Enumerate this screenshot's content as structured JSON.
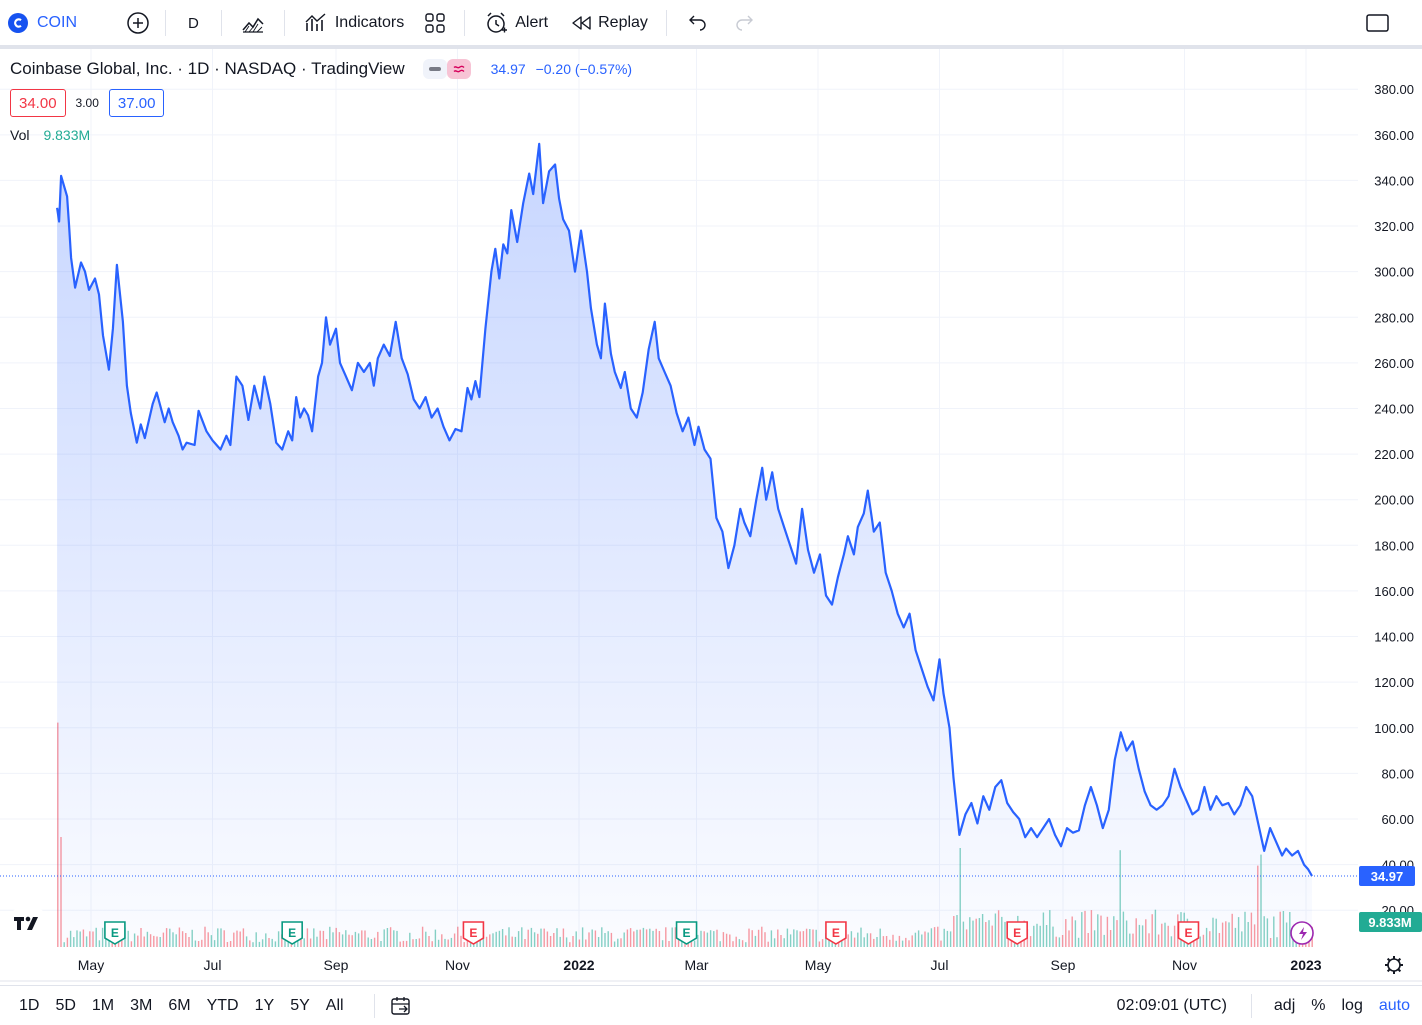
{
  "toolbar": {
    "symbol": "COIN",
    "interval": "D",
    "indicators_label": "Indicators",
    "alert_label": "Alert",
    "replay_label": "Replay"
  },
  "legend": {
    "title": "Coinbase Global, Inc. · 1D · NASDAQ · TradingView",
    "last": "34.97",
    "change": "−0.20 (−0.57%)"
  },
  "trade": {
    "sell": "34.00",
    "spread": "3.00",
    "buy": "37.00"
  },
  "volume": {
    "label": "Vol",
    "value": "9.833M"
  },
  "price_tag": "34.97",
  "volume_tag": "9.833M",
  "bottom": {
    "ranges": [
      "1D",
      "5D",
      "1M",
      "3M",
      "6M",
      "YTD",
      "1Y",
      "5Y",
      "All"
    ],
    "time": "02:09:01 (UTC)",
    "options": [
      "adj",
      "%",
      "log",
      "auto"
    ]
  },
  "colors": {
    "line": "#2962ff",
    "up": "#22ab94",
    "down": "#f23645",
    "earnings_past_up": "#089981",
    "earnings_down": "#f23645",
    "dividend": "#9c27b0"
  },
  "chart_data": {
    "type": "area",
    "series_name": "",
    "ylim": [
      0,
      390
    ],
    "yticks": [
      20,
      40,
      60,
      80,
      100,
      120,
      140,
      160,
      180,
      200,
      220,
      240,
      260,
      280,
      300,
      320,
      340,
      360,
      380
    ],
    "ytick_labels": [
      "20.00",
      "40.00",
      "60.00",
      "80.00",
      "100.00",
      "120.00",
      "140.00",
      "160.00",
      "180.00",
      "200.00",
      "220.00",
      "240.00",
      "260.00",
      "280.00",
      "300.00",
      "320.00",
      "340.00",
      "360.00",
      "380.00"
    ],
    "xlabels": [
      {
        "label": "May",
        "date": "2021-05-01"
      },
      {
        "label": "Jul",
        "date": "2021-07-01"
      },
      {
        "label": "Sep",
        "date": "2021-09-01"
      },
      {
        "label": "Nov",
        "date": "2021-11-01"
      },
      {
        "label": "2022",
        "date": "2022-01-01",
        "bold": true
      },
      {
        "label": "Mar",
        "date": "2022-03-01"
      },
      {
        "label": "May",
        "date": "2022-05-01"
      },
      {
        "label": "Jul",
        "date": "2022-07-01"
      },
      {
        "label": "Sep",
        "date": "2022-09-01"
      },
      {
        "label": "Nov",
        "date": "2022-11-01"
      },
      {
        "label": "2023",
        "date": "2023-01-01",
        "bold": true
      }
    ],
    "xlim": [
      "2021-04-01",
      "2023-01-15"
    ],
    "last_value": 34.97,
    "price": [
      [
        "2021-04-14",
        328
      ],
      [
        "2021-04-15",
        322
      ],
      [
        "2021-04-16",
        342
      ],
      [
        "2021-04-19",
        333
      ],
      [
        "2021-04-20",
        320
      ],
      [
        "2021-04-21",
        306
      ],
      [
        "2021-04-23",
        293
      ],
      [
        "2021-04-26",
        304
      ],
      [
        "2021-04-28",
        300
      ],
      [
        "2021-04-30",
        292
      ],
      [
        "2021-05-03",
        297
      ],
      [
        "2021-05-05",
        290
      ],
      [
        "2021-05-07",
        272
      ],
      [
        "2021-05-10",
        257
      ],
      [
        "2021-05-12",
        275
      ],
      [
        "2021-05-14",
        303
      ],
      [
        "2021-05-17",
        278
      ],
      [
        "2021-05-19",
        250
      ],
      [
        "2021-05-21",
        238
      ],
      [
        "2021-05-24",
        225
      ],
      [
        "2021-05-26",
        233
      ],
      [
        "2021-05-28",
        227
      ],
      [
        "2021-06-01",
        242
      ],
      [
        "2021-06-03",
        247
      ],
      [
        "2021-06-07",
        234
      ],
      [
        "2021-06-09",
        240
      ],
      [
        "2021-06-11",
        234
      ],
      [
        "2021-06-14",
        228
      ],
      [
        "2021-06-16",
        222
      ],
      [
        "2021-06-18",
        225
      ],
      [
        "2021-06-22",
        224
      ],
      [
        "2021-06-24",
        239
      ],
      [
        "2021-06-28",
        230
      ],
      [
        "2021-07-01",
        226
      ],
      [
        "2021-07-05",
        222
      ],
      [
        "2021-07-08",
        228
      ],
      [
        "2021-07-10",
        224
      ],
      [
        "2021-07-13",
        254
      ],
      [
        "2021-07-16",
        250
      ],
      [
        "2021-07-19",
        235
      ],
      [
        "2021-07-22",
        250
      ],
      [
        "2021-07-25",
        240
      ],
      [
        "2021-07-27",
        254
      ],
      [
        "2021-07-30",
        242
      ],
      [
        "2021-08-02",
        225
      ],
      [
        "2021-08-05",
        222
      ],
      [
        "2021-08-08",
        230
      ],
      [
        "2021-08-10",
        226
      ],
      [
        "2021-08-12",
        245
      ],
      [
        "2021-08-14",
        236
      ],
      [
        "2021-08-16",
        240
      ],
      [
        "2021-08-18",
        237
      ],
      [
        "2021-08-20",
        230
      ],
      [
        "2021-08-23",
        254
      ],
      [
        "2021-08-25",
        260
      ],
      [
        "2021-08-27",
        280
      ],
      [
        "2021-08-29",
        268
      ],
      [
        "2021-09-01",
        275
      ],
      [
        "2021-09-03",
        260
      ],
      [
        "2021-09-06",
        254
      ],
      [
        "2021-09-09",
        248
      ],
      [
        "2021-09-12",
        260
      ],
      [
        "2021-09-15",
        256
      ],
      [
        "2021-09-18",
        260
      ],
      [
        "2021-09-20",
        250
      ],
      [
        "2021-09-22",
        262
      ],
      [
        "2021-09-25",
        268
      ],
      [
        "2021-09-28",
        263
      ],
      [
        "2021-10-01",
        278
      ],
      [
        "2021-10-04",
        262
      ],
      [
        "2021-10-07",
        255
      ],
      [
        "2021-10-10",
        244
      ],
      [
        "2021-10-13",
        240
      ],
      [
        "2021-10-16",
        245
      ],
      [
        "2021-10-19",
        236
      ],
      [
        "2021-10-22",
        240
      ],
      [
        "2021-10-25",
        232
      ],
      [
        "2021-10-28",
        226
      ],
      [
        "2021-10-31",
        231
      ],
      [
        "2021-11-03",
        230
      ],
      [
        "2021-11-06",
        249
      ],
      [
        "2021-11-08",
        244
      ],
      [
        "2021-11-10",
        252
      ],
      [
        "2021-11-12",
        245
      ],
      [
        "2021-11-15",
        275
      ],
      [
        "2021-11-18",
        300
      ],
      [
        "2021-11-20",
        310
      ],
      [
        "2021-11-22",
        297
      ],
      [
        "2021-11-24",
        312
      ],
      [
        "2021-11-26",
        308
      ],
      [
        "2021-11-28",
        327
      ],
      [
        "2021-12-01",
        313
      ],
      [
        "2021-12-04",
        330
      ],
      [
        "2021-12-07",
        343
      ],
      [
        "2021-12-09",
        334
      ],
      [
        "2021-12-12",
        356
      ],
      [
        "2021-12-14",
        330
      ],
      [
        "2021-12-17",
        344
      ],
      [
        "2021-12-20",
        347
      ],
      [
        "2021-12-22",
        332
      ],
      [
        "2021-12-24",
        323
      ],
      [
        "2021-12-27",
        318
      ],
      [
        "2021-12-30",
        300
      ],
      [
        "2022-01-02",
        318
      ],
      [
        "2022-01-05",
        300
      ],
      [
        "2022-01-07",
        284
      ],
      [
        "2022-01-10",
        268
      ],
      [
        "2022-01-12",
        262
      ],
      [
        "2022-01-14",
        286
      ],
      [
        "2022-01-17",
        264
      ],
      [
        "2022-01-19",
        256
      ],
      [
        "2022-01-22",
        249
      ],
      [
        "2022-01-24",
        256
      ],
      [
        "2022-01-27",
        240
      ],
      [
        "2022-01-30",
        236
      ],
      [
        "2022-02-02",
        247
      ],
      [
        "2022-02-05",
        266
      ],
      [
        "2022-02-08",
        278
      ],
      [
        "2022-02-10",
        262
      ],
      [
        "2022-02-13",
        256
      ],
      [
        "2022-02-16",
        250
      ],
      [
        "2022-02-19",
        238
      ],
      [
        "2022-02-22",
        230
      ],
      [
        "2022-02-25",
        236
      ],
      [
        "2022-02-28",
        224
      ],
      [
        "2022-03-02",
        232
      ],
      [
        "2022-03-05",
        222
      ],
      [
        "2022-03-08",
        218
      ],
      [
        "2022-03-11",
        192
      ],
      [
        "2022-03-14",
        186
      ],
      [
        "2022-03-17",
        170
      ],
      [
        "2022-03-20",
        180
      ],
      [
        "2022-03-23",
        196
      ],
      [
        "2022-03-25",
        190
      ],
      [
        "2022-03-28",
        184
      ],
      [
        "2022-03-31",
        200
      ],
      [
        "2022-04-03",
        214
      ],
      [
        "2022-04-05",
        200
      ],
      [
        "2022-04-08",
        212
      ],
      [
        "2022-04-11",
        196
      ],
      [
        "2022-04-14",
        188
      ],
      [
        "2022-04-17",
        180
      ],
      [
        "2022-04-20",
        172
      ],
      [
        "2022-04-23",
        196
      ],
      [
        "2022-04-26",
        178
      ],
      [
        "2022-04-29",
        168
      ],
      [
        "2022-05-02",
        176
      ],
      [
        "2022-05-05",
        158
      ],
      [
        "2022-05-08",
        154
      ],
      [
        "2022-05-11",
        166
      ],
      [
        "2022-05-14",
        176
      ],
      [
        "2022-05-16",
        184
      ],
      [
        "2022-05-19",
        176
      ],
      [
        "2022-05-21",
        188
      ],
      [
        "2022-05-24",
        194
      ],
      [
        "2022-05-26",
        204
      ],
      [
        "2022-05-29",
        186
      ],
      [
        "2022-06-01",
        190
      ],
      [
        "2022-06-04",
        168
      ],
      [
        "2022-06-07",
        160
      ],
      [
        "2022-06-10",
        150
      ],
      [
        "2022-06-13",
        144
      ],
      [
        "2022-06-16",
        150
      ],
      [
        "2022-06-19",
        134
      ],
      [
        "2022-06-22",
        126
      ],
      [
        "2022-06-25",
        118
      ],
      [
        "2022-06-28",
        112
      ],
      [
        "2022-07-01",
        130
      ],
      [
        "2022-07-03",
        115
      ],
      [
        "2022-07-06",
        100
      ],
      [
        "2022-07-08",
        78
      ],
      [
        "2022-07-11",
        53
      ],
      [
        "2022-07-14",
        62
      ],
      [
        "2022-07-17",
        67
      ],
      [
        "2022-07-20",
        58
      ],
      [
        "2022-07-23",
        70
      ],
      [
        "2022-07-26",
        64
      ],
      [
        "2022-07-29",
        74
      ],
      [
        "2022-08-01",
        77
      ],
      [
        "2022-08-04",
        67
      ],
      [
        "2022-08-07",
        63
      ],
      [
        "2022-08-10",
        60
      ],
      [
        "2022-08-13",
        52
      ],
      [
        "2022-08-16",
        56
      ],
      [
        "2022-08-19",
        52
      ],
      [
        "2022-08-22",
        56
      ],
      [
        "2022-08-25",
        60
      ],
      [
        "2022-08-28",
        53
      ],
      [
        "2022-08-31",
        48
      ],
      [
        "2022-09-03",
        56
      ],
      [
        "2022-09-06",
        54
      ],
      [
        "2022-09-09",
        55
      ],
      [
        "2022-09-12",
        66
      ],
      [
        "2022-09-15",
        74
      ],
      [
        "2022-09-18",
        66
      ],
      [
        "2022-09-21",
        56
      ],
      [
        "2022-09-24",
        64
      ],
      [
        "2022-09-27",
        86
      ],
      [
        "2022-09-30",
        98
      ],
      [
        "2022-10-03",
        90
      ],
      [
        "2022-10-06",
        94
      ],
      [
        "2022-10-09",
        82
      ],
      [
        "2022-10-12",
        72
      ],
      [
        "2022-10-15",
        66
      ],
      [
        "2022-10-18",
        64
      ],
      [
        "2022-10-21",
        66
      ],
      [
        "2022-10-24",
        70
      ],
      [
        "2022-10-27",
        82
      ],
      [
        "2022-10-30",
        74
      ],
      [
        "2022-11-02",
        68
      ],
      [
        "2022-11-05",
        62
      ],
      [
        "2022-11-08",
        64
      ],
      [
        "2022-11-11",
        74
      ],
      [
        "2022-11-14",
        64
      ],
      [
        "2022-11-17",
        70
      ],
      [
        "2022-11-20",
        66
      ],
      [
        "2022-11-23",
        67
      ],
      [
        "2022-11-26",
        62
      ],
      [
        "2022-11-29",
        66
      ],
      [
        "2022-12-02",
        74
      ],
      [
        "2022-12-05",
        70
      ],
      [
        "2022-12-08",
        58
      ],
      [
        "2022-12-11",
        46
      ],
      [
        "2022-12-14",
        56
      ],
      [
        "2022-12-17",
        50
      ],
      [
        "2022-12-20",
        44
      ],
      [
        "2022-12-22",
        47
      ],
      [
        "2022-12-25",
        44
      ],
      [
        "2022-12-28",
        46
      ],
      [
        "2022-12-31",
        40
      ],
      [
        "2023-01-02",
        38
      ],
      [
        "2023-01-04",
        35
      ]
    ],
    "volume_spikes": [
      [
        "2021-04-14",
        102,
        "down"
      ],
      [
        "2021-04-15",
        50,
        "down"
      ],
      [
        "2022-07-11",
        45,
        "up"
      ],
      [
        "2022-07-12",
        49,
        "down"
      ],
      [
        "2022-09-30",
        44,
        "up"
      ],
      [
        "2022-12-08",
        37,
        "down"
      ],
      [
        "2022-12-09",
        42,
        "up"
      ]
    ],
    "earnings": [
      {
        "date": "2021-05-13",
        "type": "past",
        "color": "#089981"
      },
      {
        "date": "2021-08-10",
        "type": "past",
        "color": "#089981"
      },
      {
        "date": "2021-11-09",
        "type": "past",
        "color": "#f23645"
      },
      {
        "date": "2022-02-24",
        "type": "past",
        "color": "#089981"
      },
      {
        "date": "2022-05-10",
        "type": "past",
        "color": "#f23645"
      },
      {
        "date": "2022-08-09",
        "type": "past",
        "color": "#f23645"
      },
      {
        "date": "2022-11-03",
        "type": "past",
        "color": "#f23645"
      }
    ],
    "dividend_marker_date": "2022-12-30",
    "grid": true
  }
}
